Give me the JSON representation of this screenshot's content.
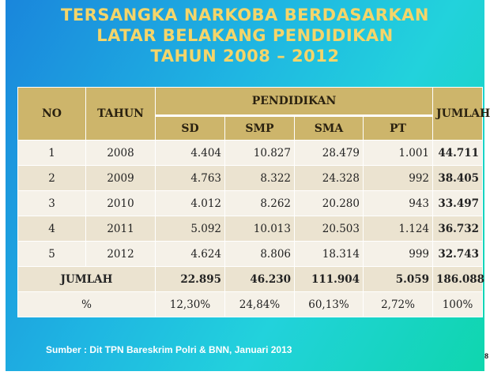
{
  "title": {
    "line1": "TERSANGKA NARKOBA BERDASARKAN",
    "line2": "LATAR BELAKANG PENDIDIKAN",
    "line3": "TAHUN 2008 – 2012"
  },
  "table": {
    "headers": {
      "no": "NO",
      "tahun": "TAHUN",
      "group": "PENDIDIKAN",
      "sd": "SD",
      "smp": "SMP",
      "sma": "SMA",
      "pt": "PT",
      "jumlah": "JUMLAH"
    },
    "rows": [
      {
        "no": "1",
        "tahun": "2008",
        "sd": "4.404",
        "smp": "10.827",
        "sma": "28.479",
        "pt": "1.001",
        "jumlah": "44.711"
      },
      {
        "no": "2",
        "tahun": "2009",
        "sd": "4.763",
        "smp": "8.322",
        "sma": "24.328",
        "pt": "992",
        "jumlah": "38.405"
      },
      {
        "no": "3",
        "tahun": "2010",
        "sd": "4.012",
        "smp": "8.262",
        "sma": "20.280",
        "pt": "943",
        "jumlah": "33.497"
      },
      {
        "no": "4",
        "tahun": "2011",
        "sd": "5.092",
        "smp": "10.013",
        "sma": "20.503",
        "pt": "1.124",
        "jumlah": "36.732"
      },
      {
        "no": "5",
        "tahun": "2012",
        "sd": "4.624",
        "smp": "8.806",
        "sma": "18.314",
        "pt": "999",
        "jumlah": "32.743"
      }
    ],
    "total": {
      "label": "JUMLAH",
      "sd": "22.895",
      "smp": "46.230",
      "sma": "111.904",
      "pt": "5.059",
      "jumlah": "186.088"
    },
    "percent": {
      "label": "%",
      "sd": "12,30%",
      "smp": "24,84%",
      "sma": "60,13%",
      "pt": "2,72%",
      "jumlah": "100%"
    }
  },
  "source": "Sumber : Dit TPN Bareskrim Polri & BNN, Januari 2013",
  "page_number": "8"
}
